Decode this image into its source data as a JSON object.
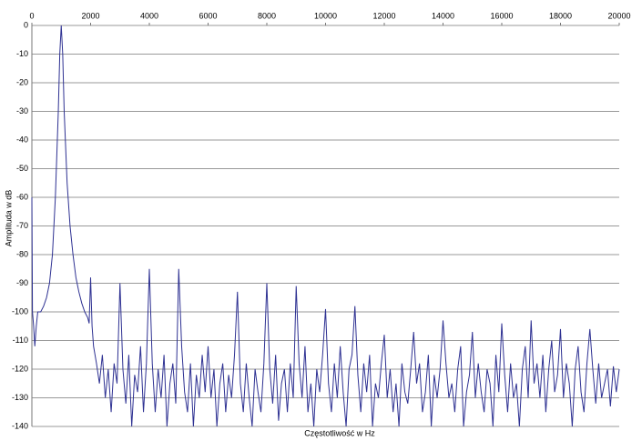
{
  "chart_data": {
    "type": "line",
    "xlabel": "Częstotliwość w Hz",
    "ylabel": "Amplituda w dB",
    "xlim": [
      0,
      20000
    ],
    "xticks": [
      0,
      2000,
      4000,
      6000,
      8000,
      10000,
      12000,
      14000,
      16000,
      18000,
      20000
    ],
    "ylim": [
      -140,
      0
    ],
    "yticks": [
      0,
      -10,
      -20,
      -30,
      -40,
      -50,
      -60,
      -70,
      -80,
      -90,
      -100,
      -110,
      -120,
      -130,
      -140
    ],
    "grid": true,
    "series": [
      {
        "color": "#2e3192",
        "x": [
          0,
          20,
          60,
          100,
          150,
          200,
          300,
          400,
          500,
          600,
          700,
          800,
          900,
          950,
          1000,
          1050,
          1100,
          1200,
          1300,
          1400,
          1500,
          1600,
          1700,
          1800,
          1900,
          1950,
          2000,
          2050,
          2100,
          2200,
          2300,
          2400,
          2500,
          2600,
          2700,
          2800,
          2900,
          3000,
          3100,
          3200,
          3300,
          3400,
          3500,
          3600,
          3700,
          3800,
          3900,
          4000,
          4100,
          4200,
          4300,
          4400,
          4500,
          4600,
          4700,
          4800,
          4900,
          5000,
          5100,
          5200,
          5300,
          5400,
          5500,
          5600,
          5700,
          5800,
          5900,
          6000,
          6100,
          6200,
          6300,
          6400,
          6500,
          6600,
          6700,
          6800,
          6900,
          7000,
          7100,
          7200,
          7300,
          7400,
          7500,
          7600,
          7700,
          7800,
          7900,
          8000,
          8100,
          8200,
          8300,
          8400,
          8500,
          8600,
          8700,
          8800,
          8900,
          9000,
          9100,
          9200,
          9300,
          9400,
          9500,
          9600,
          9700,
          9800,
          9900,
          10000,
          10100,
          10200,
          10300,
          10400,
          10500,
          10600,
          10700,
          10800,
          10900,
          11000,
          11100,
          11200,
          11300,
          11400,
          11500,
          11600,
          11700,
          11800,
          11900,
          12000,
          12100,
          12200,
          12300,
          12400,
          12500,
          12600,
          12700,
          12800,
          12900,
          13000,
          13100,
          13200,
          13300,
          13400,
          13500,
          13600,
          13700,
          13800,
          13900,
          14000,
          14100,
          14200,
          14300,
          14400,
          14500,
          14600,
          14700,
          14800,
          14900,
          15000,
          15100,
          15200,
          15300,
          15400,
          15500,
          15600,
          15700,
          15800,
          15900,
          16000,
          16100,
          16200,
          16300,
          16400,
          16500,
          16600,
          16700,
          16800,
          16900,
          17000,
          17100,
          17200,
          17300,
          17400,
          17500,
          17600,
          17700,
          17800,
          17900,
          18000,
          18100,
          18200,
          18300,
          18400,
          18500,
          18600,
          18700,
          18800,
          18900,
          19000,
          19100,
          19200,
          19300,
          19400,
          19500,
          19600,
          19700,
          19800,
          19900,
          20000
        ],
        "values": [
          -60,
          -100,
          -105,
          -112,
          -105,
          -100,
          -100,
          -98,
          -95,
          -90,
          -80,
          -60,
          -30,
          -10,
          0,
          -10,
          -30,
          -55,
          -70,
          -80,
          -88,
          -93,
          -97,
          -100,
          -102,
          -104,
          -88,
          -105,
          -112,
          -118,
          -125,
          -115,
          -130,
          -120,
          -135,
          -118,
          -125,
          -90,
          -120,
          -132,
          -115,
          -140,
          -122,
          -128,
          -112,
          -135,
          -118,
          -85,
          -118,
          -135,
          -120,
          -130,
          -115,
          -140,
          -125,
          -118,
          -132,
          -85,
          -112,
          -128,
          -135,
          -118,
          -140,
          -122,
          -130,
          -115,
          -128,
          -112,
          -130,
          -120,
          -140,
          -125,
          -118,
          -135,
          -122,
          -130,
          -115,
          -93,
          -125,
          -135,
          -118,
          -130,
          -140,
          -120,
          -128,
          -135,
          -118,
          -90,
          -120,
          -132,
          -115,
          -138,
          -125,
          -120,
          -135,
          -118,
          -130,
          -91,
          -118,
          -130,
          -112,
          -135,
          -125,
          -140,
          -120,
          -128,
          -115,
          -99,
          -125,
          -135,
          -118,
          -130,
          -112,
          -128,
          -140,
          -120,
          -115,
          -98,
          -122,
          -135,
          -118,
          -128,
          -115,
          -140,
          -125,
          -130,
          -118,
          -108,
          -130,
          -120,
          -135,
          -125,
          -140,
          -118,
          -128,
          -132,
          -120,
          -107,
          -125,
          -118,
          -135,
          -128,
          -115,
          -140,
          -122,
          -130,
          -120,
          -103,
          -118,
          -130,
          -125,
          -135,
          -120,
          -112,
          -140,
          -128,
          -122,
          -107,
          -130,
          -118,
          -128,
          -135,
          -120,
          -125,
          -140,
          -115,
          -128,
          -104,
          -122,
          -135,
          -118,
          -130,
          -125,
          -140,
          -120,
          -112,
          -130,
          -103,
          -125,
          -118,
          -130,
          -115,
          -135,
          -120,
          -110,
          -128,
          -122,
          -106,
          -130,
          -118,
          -125,
          -140,
          -120,
          -112,
          -128,
          -135,
          -118,
          -106,
          -120,
          -132,
          -118,
          -130,
          -125,
          -120,
          -133,
          -119,
          -128,
          -120
        ]
      }
    ]
  }
}
